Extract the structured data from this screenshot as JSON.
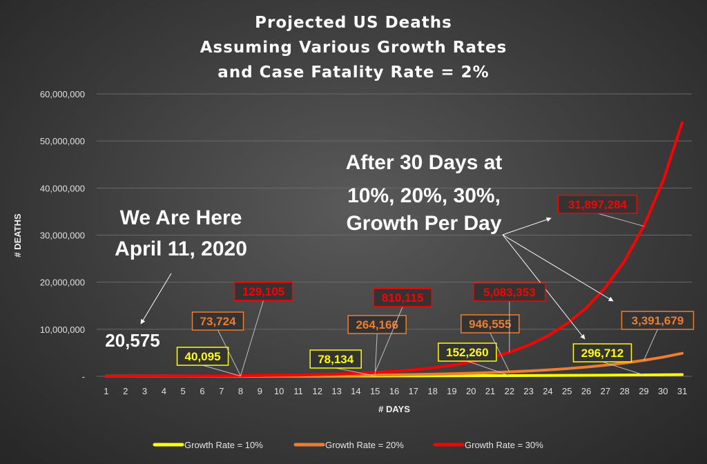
{
  "chart_data": {
    "type": "line",
    "title_lines": [
      "Projected US Deaths",
      "Assuming Various Growth Rates",
      "and Case Fatality Rate = 2%"
    ],
    "xlabel": "# DAYS",
    "ylabel": "# DEATHS",
    "x": [
      1,
      2,
      3,
      4,
      5,
      6,
      7,
      8,
      9,
      10,
      11,
      12,
      13,
      14,
      15,
      16,
      17,
      18,
      19,
      20,
      21,
      22,
      23,
      24,
      25,
      26,
      27,
      28,
      29,
      30,
      31
    ],
    "ylim": [
      0,
      60000000
    ],
    "y_ticks": [
      0,
      10000000,
      20000000,
      30000000,
      40000000,
      50000000,
      60000000
    ],
    "y_tick_labels": [
      "-",
      "10,000,000",
      "20,000,000",
      "30,000,000",
      "40,000,000",
      "50,000,000",
      "60,000,000"
    ],
    "grid": "horizontal",
    "legend_position": "bottom",
    "series": [
      {
        "name": "Growth Rate = 10%",
        "color": "#ffff00",
        "values": [
          20575,
          22633,
          24896,
          27386,
          30124,
          33137,
          36450,
          40095,
          44105,
          48515,
          53367,
          58704,
          64574,
          71032,
          78134,
          85948,
          94542,
          103997,
          114396,
          125836,
          138420,
          152260,
          167486,
          184235,
          202658,
          222924,
          245216,
          269738,
          296712,
          326383,
          359021
        ]
      },
      {
        "name": "Growth Rate = 20%",
        "color": "#ed7d31",
        "values": [
          20575,
          24690,
          29628,
          35554,
          42664,
          51197,
          61437,
          73724,
          88469,
          106163,
          127396,
          152875,
          183450,
          220140,
          264166,
          317000,
          380400,
          456480,
          547776,
          657331,
          788797,
          946555,
          1135866,
          1363039,
          1635647,
          1962776,
          2355331,
          2826397,
          3391679,
          4070015,
          4884018
        ]
      },
      {
        "name": "Growth Rate = 30%",
        "color": "#ff0000",
        "values": [
          20575,
          26748,
          34772,
          45204,
          58765,
          76394,
          99313,
          129105,
          167837,
          218188,
          283644,
          368737,
          479358,
          623165,
          810115,
          1053149,
          1369094,
          1779822,
          2313769,
          3007900,
          3910270,
          5083353,
          6608358,
          8590866,
          11168126,
          14518564,
          18874133,
          24536373,
          31897284,
          41466469,
          53906410
        ]
      }
    ],
    "annotations": {
      "we_are_here": [
        "We Are Here",
        "April 11, 2020"
      ],
      "start_value": "20,575",
      "after_30_days": [
        "After 30 Days at",
        "10%, 20%, 30%,",
        "Growth Per Day"
      ]
    },
    "callouts": [
      {
        "text": "40,095",
        "series": 0,
        "day": 8
      },
      {
        "text": "73,724",
        "series": 1,
        "day": 8
      },
      {
        "text": "129,105",
        "series": 2,
        "day": 8
      },
      {
        "text": "78,134",
        "series": 0,
        "day": 15
      },
      {
        "text": "264,166",
        "series": 1,
        "day": 15
      },
      {
        "text": "810,115",
        "series": 2,
        "day": 15
      },
      {
        "text": "152,260",
        "series": 0,
        "day": 22
      },
      {
        "text": "946,555",
        "series": 1,
        "day": 22
      },
      {
        "text": "5,083,353",
        "series": 2,
        "day": 22
      },
      {
        "text": "296,712",
        "series": 0,
        "day": 29
      },
      {
        "text": "3,391,679",
        "series": 1,
        "day": 29
      },
      {
        "text": "31,897,284",
        "series": 2,
        "day": 29
      }
    ]
  }
}
